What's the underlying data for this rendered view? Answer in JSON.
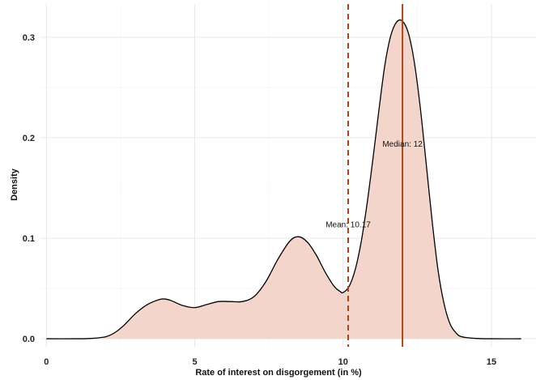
{
  "colors": {
    "fill": "#f4d5cc",
    "curve": "#000000",
    "mean_line": "#a7461d",
    "median_line": "#a7461d",
    "grid_major": "#e4e4e4",
    "grid_minor": "#f1f1f1"
  },
  "chart_data": {
    "type": "area",
    "xlabel": "Rate of interest on disgorgement (in %)",
    "ylabel": "Density",
    "xlim": [
      -0.2,
      16.5
    ],
    "ylim": [
      -0.008,
      0.333
    ],
    "x_ticks": [
      0,
      5,
      10,
      15
    ],
    "x_tick_labels": [
      "0",
      "5",
      "10",
      "15"
    ],
    "y_ticks": [
      0.0,
      0.1,
      0.2,
      0.3
    ],
    "y_tick_labels": [
      "0.0",
      "0.1",
      "0.2",
      "0.3"
    ],
    "grid": true,
    "legend": "none",
    "density": {
      "x": [
        0,
        1,
        1.5,
        2,
        2.3,
        2.6,
        3.0,
        3.4,
        3.8,
        4.0,
        4.2,
        4.6,
        5.0,
        5.4,
        5.8,
        6.2,
        6.6,
        7.0,
        7.4,
        7.8,
        8.2,
        8.5,
        8.8,
        9.1,
        9.4,
        9.7,
        9.9,
        10.0,
        10.2,
        10.4,
        10.6,
        10.8,
        11.0,
        11.2,
        11.4,
        11.6,
        11.8,
        12.0,
        12.2,
        12.4,
        12.6,
        12.8,
        13.0,
        13.2,
        13.4,
        13.6,
        13.8,
        14.0,
        14.5,
        15.0,
        16.0
      ],
      "y": [
        0.0,
        0.0,
        0.0003,
        0.002,
        0.006,
        0.013,
        0.025,
        0.034,
        0.039,
        0.0395,
        0.038,
        0.033,
        0.031,
        0.034,
        0.037,
        0.037,
        0.037,
        0.042,
        0.057,
        0.079,
        0.097,
        0.1015,
        0.096,
        0.083,
        0.066,
        0.052,
        0.047,
        0.046,
        0.052,
        0.068,
        0.095,
        0.133,
        0.178,
        0.226,
        0.271,
        0.301,
        0.315,
        0.316,
        0.304,
        0.275,
        0.23,
        0.174,
        0.117,
        0.068,
        0.035,
        0.015,
        0.006,
        0.002,
        0.0003,
        0.0,
        0.0
      ]
    },
    "mean": {
      "value": 10.17,
      "label": "Mean: 10.17",
      "style": "dashed"
    },
    "median": {
      "value": 12,
      "label": "Median: 12",
      "style": "solid"
    }
  }
}
